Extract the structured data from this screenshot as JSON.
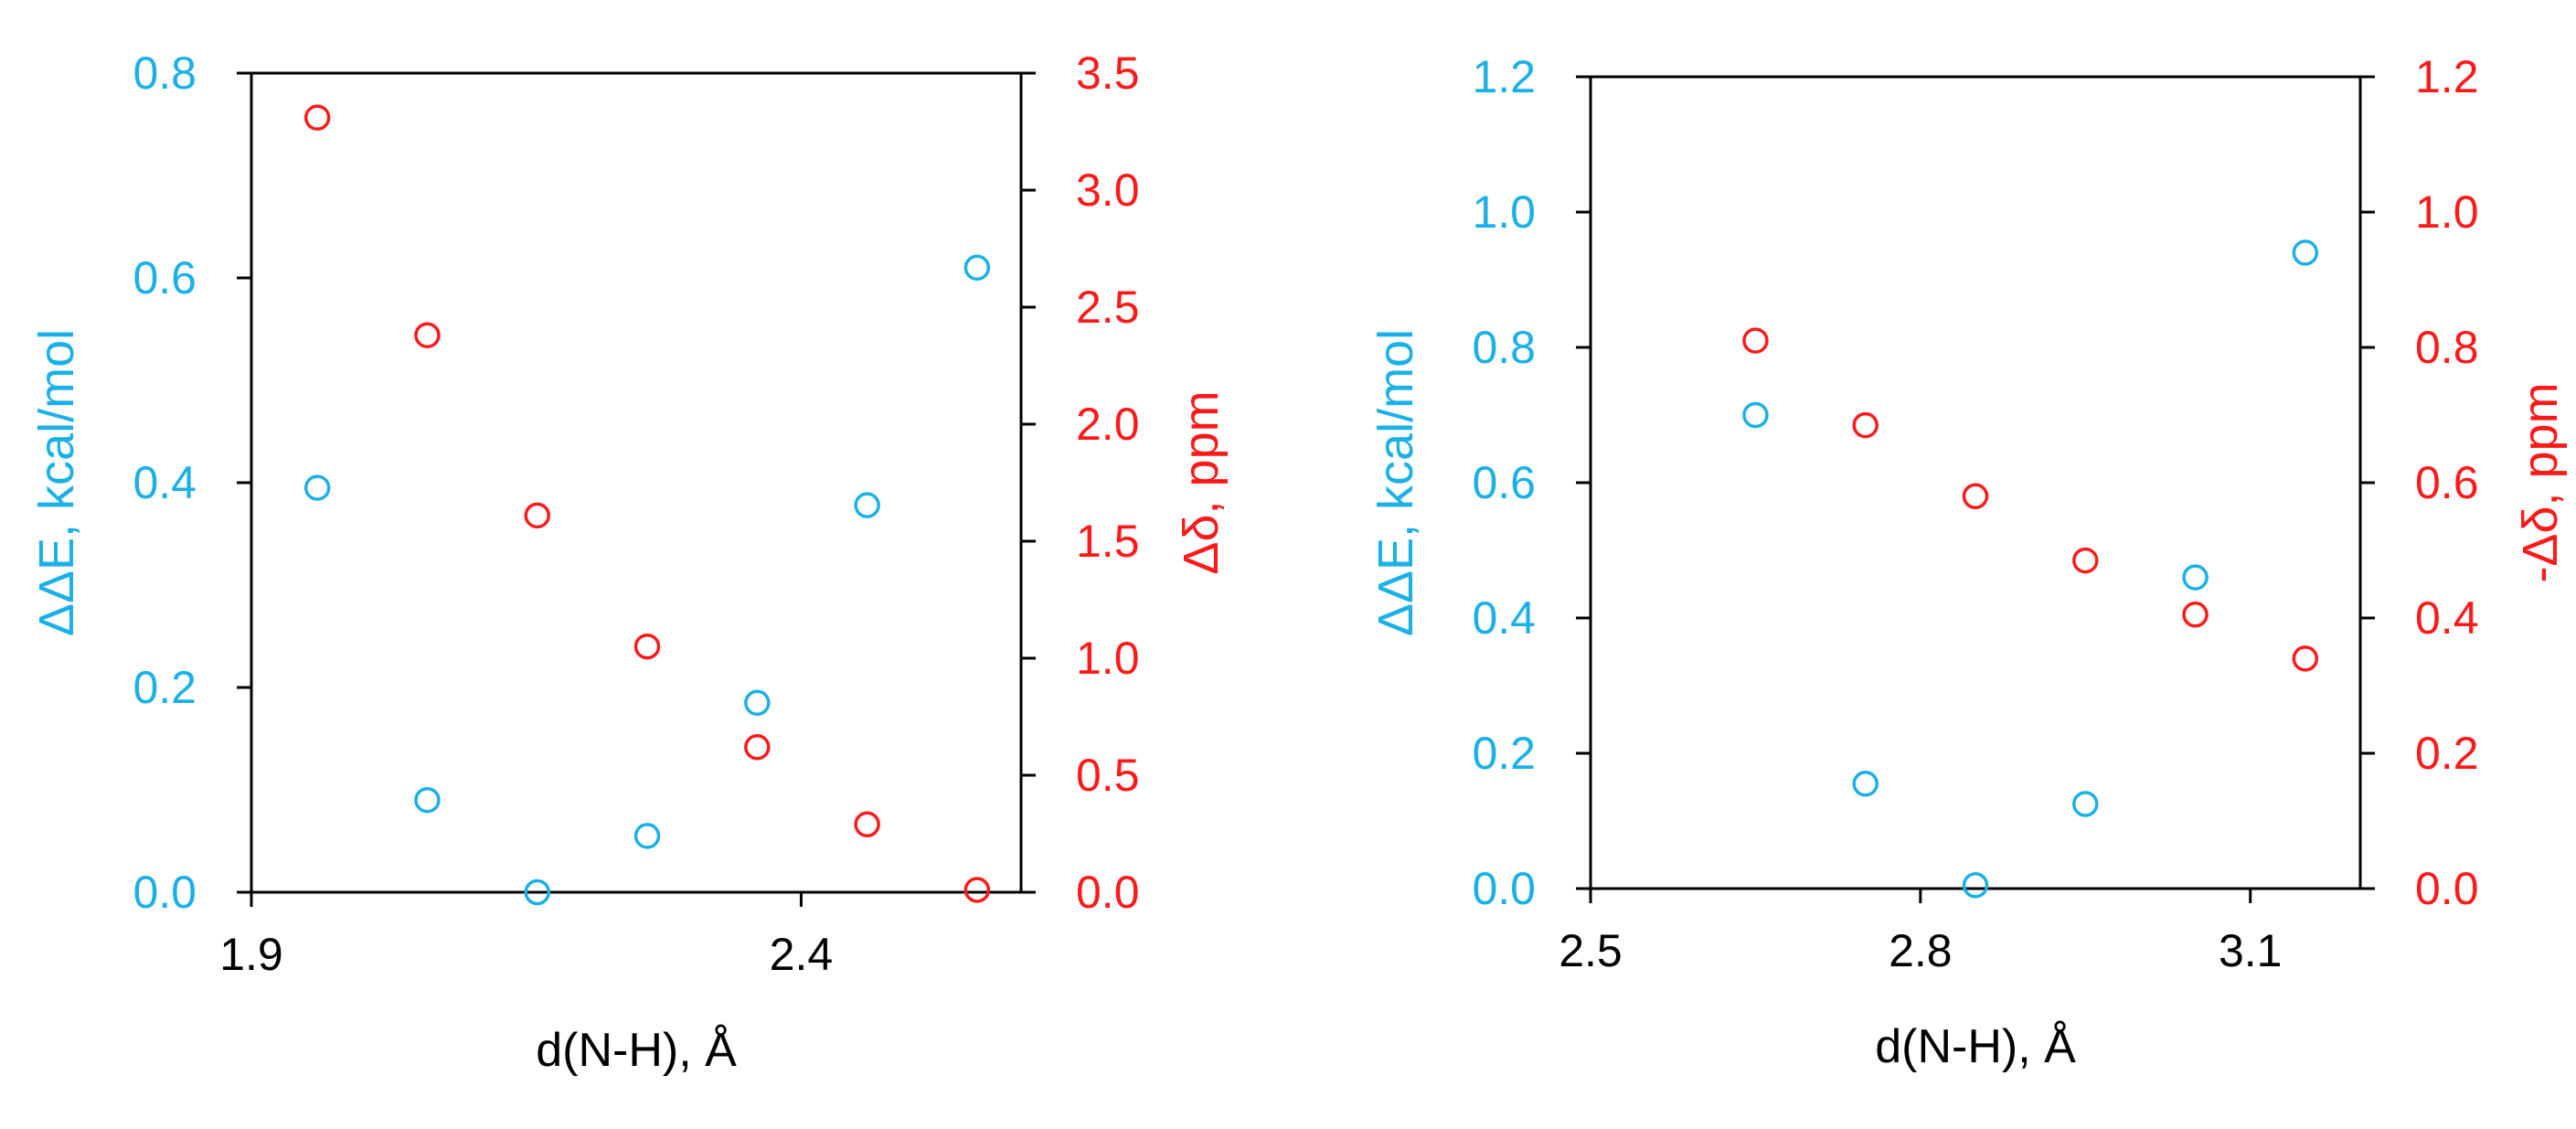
{
  "colors": {
    "left_axis": "#1AB0E8",
    "right_axis": "#FF1A1A",
    "frame": "#000000"
  },
  "chart_data": [
    {
      "type": "scatter",
      "xlabel": "d(N-H), Å",
      "ylabel_left": "ΔΔE, kcal/mol",
      "ylabel_right": "Δδ, ppm",
      "xlim": [
        1.9,
        2.6
      ],
      "ylim_left": [
        0,
        0.8
      ],
      "ylim_right": [
        0,
        3.5
      ],
      "xticks": [
        "1.9",
        "2.4"
      ],
      "yticks_left": [
        "0.0",
        "0.2",
        "0.4",
        "0.6",
        "0.8"
      ],
      "yticks_right": [
        "0.0",
        "0.5",
        "1.0",
        "1.5",
        "2.0",
        "2.5",
        "3.0",
        "3.5"
      ],
      "grid": false,
      "series": [
        {
          "axis": "left",
          "color": "#1AB0E8",
          "x": [
            1.96,
            2.06,
            2.16,
            2.26,
            2.36,
            2.46,
            2.56
          ],
          "y": [
            0.395,
            0.09,
            0.0,
            0.055,
            0.185,
            0.378,
            0.61
          ]
        },
        {
          "axis": "right",
          "color": "#FF1A1A",
          "x": [
            1.96,
            2.06,
            2.16,
            2.26,
            2.36,
            2.46,
            2.56
          ],
          "y": [
            3.31,
            2.38,
            1.61,
            1.05,
            0.62,
            0.29,
            0.01
          ]
        }
      ]
    },
    {
      "type": "scatter",
      "xlabel": "d(N-H), Å",
      "ylabel_left": "ΔΔE, kcal/mol",
      "ylabel_right": "-Δδ, ppm",
      "xlim": [
        2.5,
        3.2
      ],
      "ylim_left": [
        0,
        1.2
      ],
      "ylim_right": [
        0,
        1.2
      ],
      "xticks": [
        "2.5",
        "2.8",
        "3.1"
      ],
      "yticks_left": [
        "0.0",
        "0.2",
        "0.4",
        "0.6",
        "0.8",
        "1.0",
        "1.2"
      ],
      "yticks_right": [
        "0.0",
        "0.2",
        "0.4",
        "0.6",
        "0.8",
        "1.0",
        "1.2"
      ],
      "grid": false,
      "series": [
        {
          "axis": "left",
          "color": "#1AB0E8",
          "x": [
            2.65,
            2.75,
            2.85,
            2.95,
            3.05,
            3.15
          ],
          "y": [
            0.7,
            0.155,
            0.005,
            0.125,
            0.46,
            0.94
          ]
        },
        {
          "axis": "right",
          "color": "#FF1A1A",
          "x": [
            2.65,
            2.75,
            2.85,
            2.95,
            3.05,
            3.15
          ],
          "y": [
            0.81,
            0.685,
            0.58,
            0.485,
            0.405,
            0.34
          ]
        }
      ]
    }
  ]
}
